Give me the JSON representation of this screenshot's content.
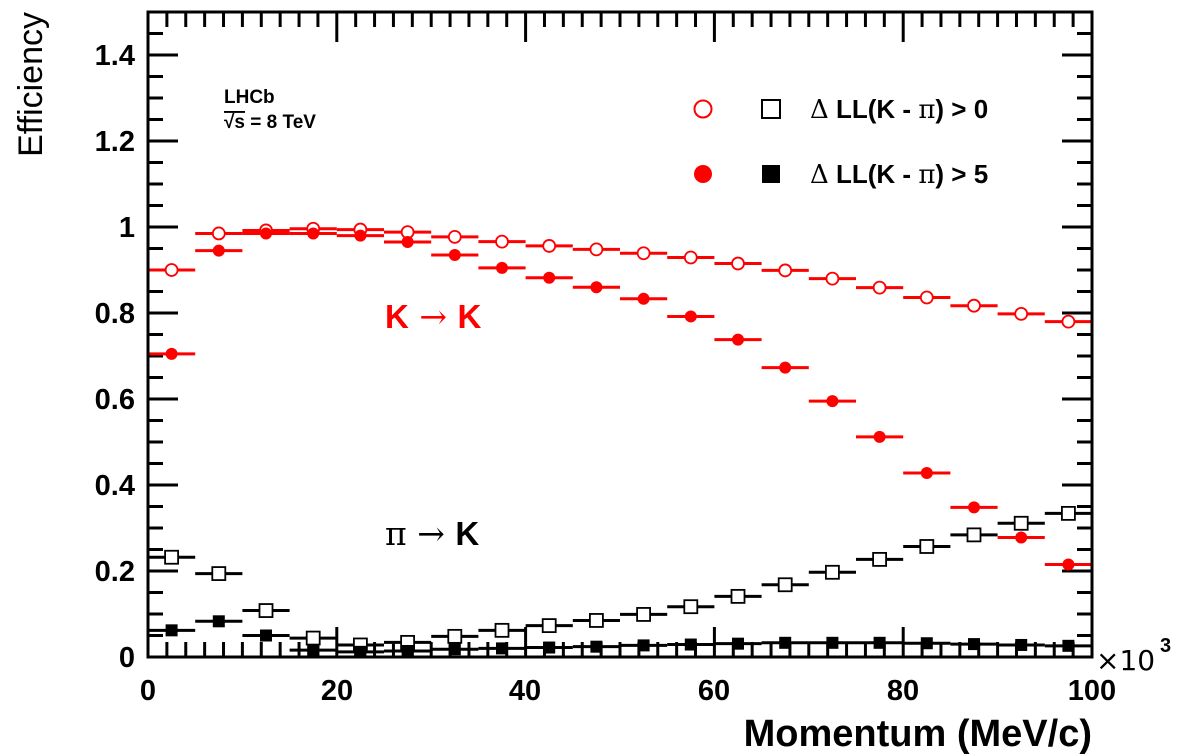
{
  "chart_data": {
    "type": "scatter",
    "x_axis": {
      "label": "Momentum (MeV/c)",
      "range": [
        0,
        100
      ],
      "ticks": [
        "0",
        "20",
        "40",
        "60",
        "80",
        "100"
      ],
      "multiplier": "×10",
      "multiplier_exponent": "3"
    },
    "y_axis": {
      "label": "Efficiency",
      "range": [
        0,
        1.5
      ],
      "ticks": [
        "0",
        "0.2",
        "0.4",
        "0.6",
        "0.8",
        "1",
        "1.2",
        "1.4"
      ]
    },
    "grid": false,
    "experiment_label": {
      "line1": "LHCb",
      "line2_sqrt": "√s",
      "line2_rest": " = 8 TeV"
    },
    "legend": {
      "placement": "top-right",
      "entries": [
        {
          "prefix": "Δ",
          "text_a": " LL(K - ",
          "greek": "π",
          "text_b": ") > 0",
          "red_marker": "open-circle",
          "black_marker": "open-square"
        },
        {
          "prefix": "Δ",
          "text_a": " LL(K - ",
          "greek": "π",
          "text_b": ") > 5",
          "red_marker": "filled-circle",
          "black_marker": "filled-square"
        }
      ]
    },
    "annotations": [
      {
        "lead": "K",
        "arrow": " → ",
        "tail": "K",
        "color": "#ff0000"
      },
      {
        "lead": "π",
        "arrow": " → ",
        "tail": "K",
        "color": "#000000"
      }
    ],
    "bin_width": 5,
    "series": [
      {
        "cut": "ΔLL(K-π) > 0",
        "process": "K → K",
        "marker": "open-circle",
        "color": "#ff0000",
        "x": [
          2.5,
          7.5,
          12.5,
          17.5,
          22.5,
          27.5,
          32.5,
          37.5,
          42.5,
          47.5,
          52.5,
          57.5,
          62.5,
          67.5,
          72.5,
          77.5,
          82.5,
          87.5,
          92.5,
          97.5
        ],
        "y": [
          0.9,
          0.985,
          0.992,
          0.996,
          0.994,
          0.988,
          0.977,
          0.966,
          0.956,
          0.948,
          0.939,
          0.929,
          0.915,
          0.899,
          0.88,
          0.859,
          0.836,
          0.817,
          0.798,
          0.78
        ]
      },
      {
        "cut": "ΔLL(K-π) > 5",
        "process": "K → K",
        "marker": "filled-circle",
        "color": "#ff0000",
        "x": [
          2.5,
          7.5,
          12.5,
          17.5,
          22.5,
          27.5,
          32.5,
          37.5,
          42.5,
          47.5,
          52.5,
          57.5,
          62.5,
          67.5,
          72.5,
          77.5,
          82.5,
          87.5,
          92.5,
          97.5
        ],
        "y": [
          0.705,
          0.945,
          0.985,
          0.985,
          0.98,
          0.965,
          0.935,
          0.905,
          0.882,
          0.86,
          0.833,
          0.792,
          0.738,
          0.673,
          0.595,
          0.512,
          0.428,
          0.348,
          0.278,
          0.215
        ]
      },
      {
        "cut": "ΔLL(K-π) > 0",
        "process": "π → K",
        "marker": "open-square",
        "color": "#000000",
        "x": [
          2.5,
          7.5,
          12.5,
          17.5,
          22.5,
          27.5,
          32.5,
          37.5,
          42.5,
          47.5,
          52.5,
          57.5,
          62.5,
          67.5,
          72.5,
          77.5,
          82.5,
          87.5,
          92.5,
          97.5
        ],
        "y": [
          0.232,
          0.194,
          0.108,
          0.044,
          0.028,
          0.034,
          0.048,
          0.062,
          0.073,
          0.085,
          0.099,
          0.117,
          0.141,
          0.168,
          0.197,
          0.227,
          0.257,
          0.284,
          0.311,
          0.334
        ]
      },
      {
        "cut": "ΔLL(K-π) > 5",
        "process": "π → K",
        "marker": "filled-square",
        "color": "#000000",
        "x": [
          2.5,
          7.5,
          12.5,
          17.5,
          22.5,
          27.5,
          32.5,
          37.5,
          42.5,
          47.5,
          52.5,
          57.5,
          62.5,
          67.5,
          72.5,
          77.5,
          82.5,
          87.5,
          92.5,
          97.5
        ],
        "y": [
          0.062,
          0.083,
          0.05,
          0.016,
          0.012,
          0.014,
          0.018,
          0.02,
          0.022,
          0.024,
          0.027,
          0.029,
          0.031,
          0.033,
          0.033,
          0.033,
          0.032,
          0.03,
          0.028,
          0.026
        ]
      }
    ]
  }
}
